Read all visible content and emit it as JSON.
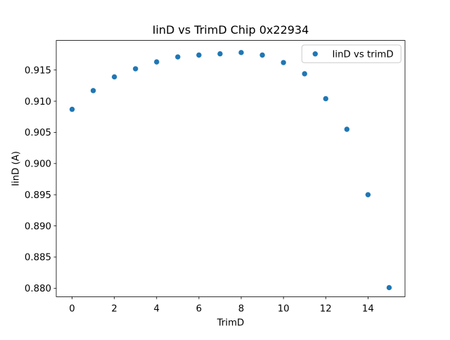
{
  "window": {
    "background": "#ffffff"
  },
  "chart_data": {
    "type": "scatter",
    "title": "IinD vs TrimD Chip 0x22934",
    "xlabel": "TrimD",
    "ylabel": "IinD (A)",
    "legend": {
      "label": "IinD vs trimD",
      "position": "upper right"
    },
    "marker": {
      "color": "#1f77b4",
      "shape": "circle"
    },
    "x": [
      0,
      1,
      2,
      3,
      4,
      5,
      6,
      7,
      8,
      9,
      10,
      11,
      12,
      13,
      14,
      15
    ],
    "y": [
      0.9087,
      0.9117,
      0.9139,
      0.9152,
      0.9163,
      0.9171,
      0.9174,
      0.9176,
      0.9178,
      0.9174,
      0.9162,
      0.9144,
      0.9104,
      0.9055,
      0.895,
      0.8801
    ],
    "xlim": [
      -0.75,
      15.75
    ],
    "ylim": [
      0.87864,
      0.91974
    ],
    "xticks": [
      0,
      2,
      4,
      6,
      8,
      10,
      12,
      14
    ],
    "yticks": [
      0.88,
      0.885,
      0.89,
      0.895,
      0.9,
      0.905,
      0.91,
      0.915
    ],
    "ytick_decimals": 3,
    "grid": false,
    "axis_color": "#000000",
    "legend_border_color": "#cccccc"
  }
}
